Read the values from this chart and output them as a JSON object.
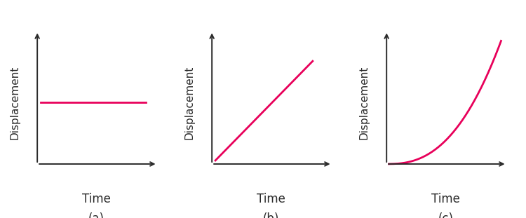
{
  "line_color": "#E8005A",
  "line_width": 2.0,
  "axis_color": "#2a2a2a",
  "label_color": "#2a2a2a",
  "bg_color": "#ffffff",
  "xlabel": "Time",
  "ylabel": "Displacement",
  "subplot_labels": [
    "(a)",
    "(b)",
    "(c)"
  ],
  "xlabel_fontsize": 12,
  "ylabel_fontsize": 11,
  "sublabel_fontsize": 12,
  "axis_linewidth": 1.4,
  "arrow_scale": 10
}
